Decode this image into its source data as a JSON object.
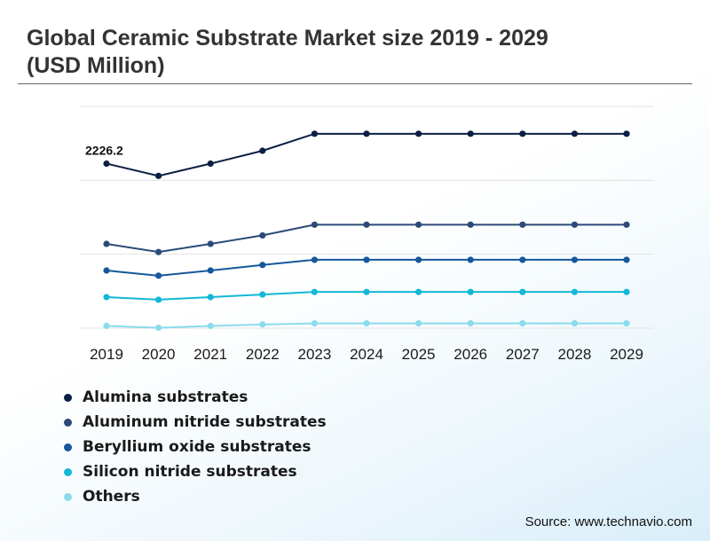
{
  "title": "Global Ceramic Substrate Market size 2019 - 2029 (USD Million)",
  "source": "Source: www.technavio.com",
  "chart_data": {
    "type": "line",
    "title": "Global Ceramic Substrate Market size 2019 - 2029 (USD Million)",
    "xlabel": "",
    "ylabel": "",
    "categories": [
      "2019",
      "2020",
      "2021",
      "2022",
      "2023",
      "2024",
      "2025",
      "2026",
      "2027",
      "2028",
      "2029"
    ],
    "ylim": [
      0,
      3000
    ],
    "grid": true,
    "legend_position": "bottom-left",
    "annotations": [
      {
        "series": 0,
        "index": 0,
        "text": "2226.2"
      }
    ],
    "series": [
      {
        "name": "Alumina substrates",
        "color": "#0b1f44",
        "values": [
          2226.2,
          2060,
          2226,
          2400,
          2630,
          2630,
          2630,
          2630,
          2630,
          2630,
          2630
        ]
      },
      {
        "name": "Aluminum nitride substrates",
        "color": "#2b4a78",
        "values": [
          1140,
          1030,
          1140,
          1255,
          1400,
          1400,
          1400,
          1400,
          1400,
          1400,
          1400
        ]
      },
      {
        "name": "Beryllium oxide substrates",
        "color": "#15589b",
        "values": [
          780,
          710,
          780,
          855,
          925,
          925,
          925,
          925,
          925,
          925,
          925
        ]
      },
      {
        "name": "Silicon nitride substrates",
        "color": "#12b8d6",
        "values": [
          420,
          385,
          420,
          455,
          490,
          490,
          490,
          490,
          490,
          490,
          490
        ]
      },
      {
        "name": "Others",
        "color": "#8adcec",
        "values": [
          30,
          5,
          30,
          50,
          65,
          65,
          65,
          65,
          65,
          65,
          65
        ]
      }
    ]
  }
}
